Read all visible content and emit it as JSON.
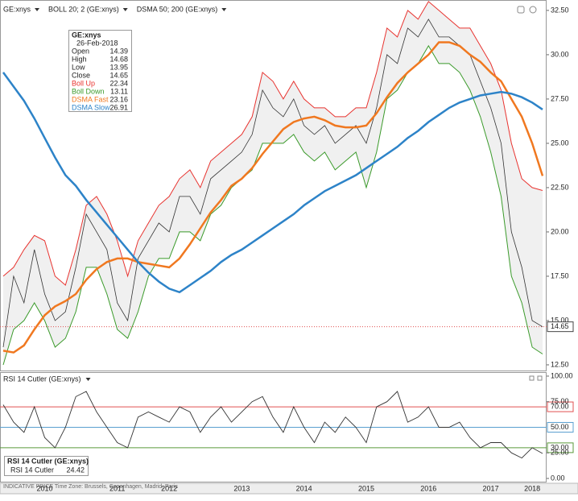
{
  "toolbar": [
    "GE:xnys",
    "BOLL 20; 2 (GE:xnys)",
    "DSMA 50; 200 (GE:xnys)"
  ],
  "footer": "INDICATIVE PRICE   Time Zone: Brussels, Copenhagen, Madrid, Paris",
  "chart_data": [
    {
      "type": "line",
      "info_box": {
        "title": "GE:xnys",
        "date": "26-Feb-2018",
        "rows": [
          {
            "label": "Open",
            "value": 14.39
          },
          {
            "label": "High",
            "value": 14.68
          },
          {
            "label": "Low",
            "value": 13.95
          }
        ]
      },
      "series": [
        {
          "name": "Close",
          "color": "#333333",
          "values": [
            13.5,
            17.5,
            16,
            19,
            16.5,
            15,
            15.5,
            18,
            21,
            20,
            19,
            16,
            15,
            18.5,
            19.5,
            20.5,
            20,
            22,
            22,
            21,
            23,
            23.5,
            24,
            24.5,
            25.5,
            28,
            27,
            26.5,
            27.5,
            26,
            25.5,
            26,
            25,
            25.5,
            26,
            25,
            27,
            30,
            29.5,
            31.5,
            31,
            32,
            31,
            31,
            30.5,
            30,
            28.5,
            27,
            25,
            20,
            18,
            15,
            14.65
          ]
        },
        {
          "name": "Boll Up",
          "color": "#e8332f",
          "values": [
            17.5,
            18,
            19,
            19.8,
            19.5,
            17.5,
            17,
            19,
            21.5,
            22,
            21,
            19.5,
            17.5,
            19.5,
            20.5,
            21.5,
            22,
            23,
            23.5,
            22.5,
            24,
            24.5,
            25,
            25.5,
            26.5,
            29,
            28.5,
            27.5,
            28.5,
            27.5,
            27,
            27,
            26.5,
            26.5,
            27,
            27,
            29,
            31.5,
            31,
            32.5,
            32,
            33,
            32.5,
            32,
            31.5,
            31.5,
            30.5,
            29.5,
            28,
            25,
            23,
            22.5,
            22.34
          ]
        },
        {
          "name": "Boll Down",
          "color": "#3a9a2a",
          "values": [
            12.5,
            14.5,
            15,
            16,
            15,
            13.5,
            14,
            15.5,
            18,
            18,
            16.5,
            14.5,
            14,
            15.5,
            17.5,
            18.5,
            18.5,
            20,
            20,
            19.5,
            21,
            21.5,
            22.5,
            23,
            23.5,
            25,
            25,
            25,
            25.5,
            24.5,
            24,
            24.5,
            23.5,
            24,
            24.5,
            22.5,
            24.5,
            27.5,
            28,
            29,
            29.5,
            30.5,
            29.5,
            29.5,
            29,
            28,
            26.5,
            24.5,
            22,
            17.5,
            16,
            13.5,
            13.11
          ]
        },
        {
          "name": "DSMA Fast",
          "color": "#f07820",
          "values": [
            13.3,
            13.2,
            13.6,
            14.5,
            15.3,
            15.8,
            16.1,
            16.5,
            17.3,
            17.9,
            18.3,
            18.5,
            18.5,
            18.3,
            18.2,
            18.1,
            18,
            18.5,
            19.3,
            20.2,
            21.1,
            21.8,
            22.6,
            23,
            23.6,
            24.4,
            25.1,
            25.8,
            26.2,
            26.4,
            26.5,
            26.3,
            26,
            25.9,
            25.9,
            26,
            26.7,
            27.6,
            28.4,
            29,
            29.5,
            30,
            30.7,
            30.7,
            30.5,
            30,
            29.6,
            29,
            28.5,
            27.5,
            26.5,
            25,
            23.16
          ]
        },
        {
          "name": "DSMA Slow",
          "color": "#2d83c8",
          "values": [
            29,
            28.2,
            27.4,
            26.4,
            25.3,
            24.2,
            23.2,
            22.6,
            21.8,
            21.1,
            20.4,
            19.7,
            19,
            18.3,
            17.7,
            17.2,
            16.8,
            16.6,
            17,
            17.4,
            17.8,
            18.3,
            18.7,
            19,
            19.4,
            19.8,
            20.2,
            20.6,
            21,
            21.5,
            21.9,
            22.3,
            22.6,
            22.9,
            23.2,
            23.6,
            24,
            24.4,
            24.8,
            25.3,
            25.7,
            26.2,
            26.6,
            27,
            27.3,
            27.5,
            27.7,
            27.8,
            27.9,
            27.8,
            27.6,
            27.3,
            26.91
          ]
        }
      ],
      "ylim": [
        12.18,
        32.86
      ],
      "yticks": [
        {
          "value": 12.5,
          "label": "12.50"
        },
        {
          "value": 15,
          "label": "15.00"
        },
        {
          "value": 17.5,
          "label": "17.50"
        },
        {
          "value": 20,
          "label": "20.00"
        },
        {
          "value": 22.5,
          "label": "22.50"
        },
        {
          "value": 25,
          "label": "25.00"
        },
        {
          "value": 27.5,
          "label": "27.50"
        },
        {
          "value": 30,
          "label": "30.00"
        },
        {
          "value": 32.5,
          "label": "32.50"
        }
      ]
    },
    {
      "type": "line",
      "title": "RSI 14 Cutler (GE:xnys)",
      "categories": [
        null,
        null,
        null,
        null,
        "2010",
        null,
        null,
        null,
        null,
        null,
        null,
        "2011",
        null,
        null,
        null,
        null,
        "2012",
        null,
        null,
        null,
        null,
        null,
        null,
        "2013",
        null,
        null,
        null,
        null,
        null,
        "2014",
        null,
        null,
        null,
        null,
        null,
        "2015",
        null,
        null,
        null,
        null,
        null,
        "2016",
        null,
        null,
        null,
        null,
        null,
        "2017",
        null,
        null,
        null,
        "2018",
        null
      ],
      "series": [
        {
          "name": "RSI 14 Cutler",
          "color": "#333333",
          "values": [
            72,
            55,
            45,
            70,
            40,
            30,
            50,
            80,
            85,
            65,
            50,
            35,
            30,
            60,
            65,
            60,
            55,
            70,
            65,
            45,
            60,
            70,
            55,
            65,
            75,
            80,
            60,
            45,
            70,
            50,
            35,
            55,
            45,
            60,
            50,
            35,
            70,
            75,
            85,
            55,
            60,
            70,
            50,
            50,
            55,
            40,
            30,
            35,
            35,
            25,
            20,
            30,
            24.42
          ]
        }
      ],
      "ylim": [
        -3.15,
        103.9
      ],
      "yticks": [
        {
          "value": 0,
          "label": "0.00"
        },
        {
          "value": 25,
          "label": "25.00"
        },
        {
          "value": 75,
          "label": "75.00"
        },
        {
          "value": 100,
          "label": "100.00"
        }
      ],
      "reference_lines": [
        {
          "value": 70,
          "label": "70.00",
          "color": "#e05050"
        },
        {
          "value": 50,
          "label": "50.00",
          "color": "#5aa0d0"
        },
        {
          "value": 30,
          "label": "30.00",
          "color": "#5a9a3a"
        }
      ]
    }
  ]
}
